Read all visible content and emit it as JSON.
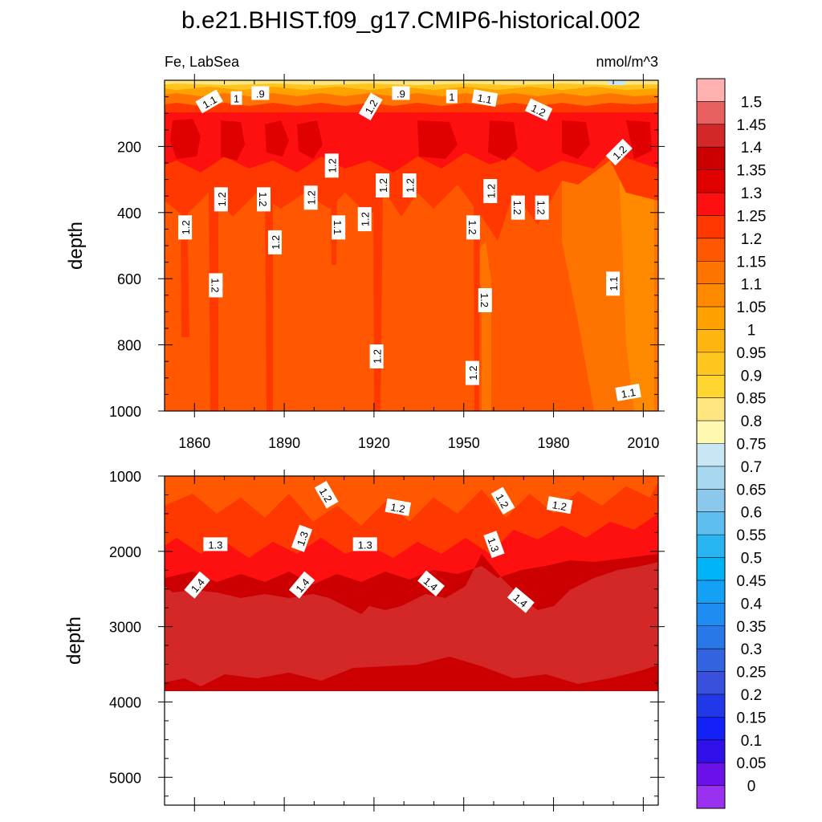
{
  "chart_data": {
    "type": "contour",
    "title": "b.e21.BHIST.f09_g17.CMIP6-historical.002",
    "variable_label": "Fe, LabSea",
    "units_label": "nmol/m^3",
    "colorbar": {
      "levels": [
        "1.5",
        "1.45",
        "1.4",
        "1.35",
        "1.3",
        "1.25",
        "1.2",
        "1.15",
        "1.1",
        "1.05",
        "1",
        "0.95",
        "0.9",
        "0.85",
        "0.8",
        "0.75",
        "0.7",
        "0.65",
        "0.6",
        "0.55",
        "0.5",
        "0.45",
        "0.4",
        "0.35",
        "0.3",
        "0.25",
        "0.2",
        "0.15",
        "0.1",
        "0.05",
        "0"
      ],
      "colors": [
        "#FFB0B0",
        "#E86060",
        "#D42828",
        "#CC0000",
        "#E00000",
        "#FF1010",
        "#FF3800",
        "#FF5800",
        "#FF7400",
        "#FF8A00",
        "#FFA200",
        "#FFB510",
        "#FFC620",
        "#FFD530",
        "#FFE680",
        "#FFF8B0",
        "#C8E6F4",
        "#A8D8F0",
        "#8CC8EC",
        "#5EBEF0",
        "#28B4F0",
        "#00B4F8",
        "#14A0F4",
        "#1E8CF0",
        "#2878E8",
        "#3264E0",
        "#3850DC",
        "#2038E8",
        "#1420F8",
        "#3010E8",
        "#6A10E8",
        "#9A30F0"
      ]
    },
    "panels": [
      {
        "name": "upper",
        "xlabel": "",
        "ylabel": "depth",
        "xlim": [
          1850,
          2015
        ],
        "ylim": [
          1000,
          0
        ],
        "x_ticks": [
          "1860",
          "1890",
          "1920",
          "1950",
          "1980",
          "2010"
        ],
        "y_ticks": [
          "200",
          "400",
          "600",
          "800",
          "1000"
        ],
        "contour_labels": [
          {
            "x": 1865,
            "y": 65,
            "text": "1.1",
            "rot": -30
          },
          {
            "x": 1874,
            "y": 55,
            "text": "1"
          },
          {
            "x": 1882,
            "y": 40,
            "text": ".9"
          },
          {
            "x": 1919,
            "y": 80,
            "text": "1.2",
            "rot": -60
          },
          {
            "x": 1929,
            "y": 40,
            "text": ".9"
          },
          {
            "x": 1946,
            "y": 50,
            "text": "1"
          },
          {
            "x": 1957,
            "y": 55,
            "text": "1.1",
            "rot": 10
          },
          {
            "x": 1975,
            "y": 90,
            "text": "1.2",
            "rot": 25
          },
          {
            "x": 2002,
            "y": 218,
            "text": "1.2",
            "rot": -45
          },
          {
            "x": 1906,
            "y": 258,
            "text": "1.2",
            "rot": -90
          },
          {
            "x": 1923,
            "y": 318,
            "text": "1.2",
            "rot": -90
          },
          {
            "x": 1932,
            "y": 318,
            "text": "1.2",
            "rot": -90
          },
          {
            "x": 1869,
            "y": 360,
            "text": "1.2",
            "rot": -90
          },
          {
            "x": 1883,
            "y": 360,
            "text": "1.2",
            "rot": 90
          },
          {
            "x": 1899,
            "y": 355,
            "text": "1.2",
            "rot": -90
          },
          {
            "x": 1959,
            "y": 335,
            "text": "1.2",
            "rot": -90
          },
          {
            "x": 1968,
            "y": 385,
            "text": "1.2",
            "rot": 90
          },
          {
            "x": 1976,
            "y": 385,
            "text": "1.2",
            "rot": 90
          },
          {
            "x": 1857,
            "y": 445,
            "text": "1.2",
            "rot": -90
          },
          {
            "x": 1908,
            "y": 445,
            "text": "1.1",
            "rot": 90
          },
          {
            "x": 1917,
            "y": 420,
            "text": "1.2",
            "rot": -90
          },
          {
            "x": 1953,
            "y": 445,
            "text": "1.2",
            "rot": 90
          },
          {
            "x": 1887,
            "y": 490,
            "text": "1.2",
            "rot": -90
          },
          {
            "x": 1867,
            "y": 620,
            "text": "1.2",
            "rot": 90
          },
          {
            "x": 1957,
            "y": 665,
            "text": "1.2",
            "rot": 90
          },
          {
            "x": 2000,
            "y": 615,
            "text": "1.1",
            "rot": -90
          },
          {
            "x": 1921,
            "y": 835,
            "text": "1.2",
            "rot": -90
          },
          {
            "x": 1953,
            "y": 885,
            "text": "1.2",
            "rot": -90
          },
          {
            "x": 2005,
            "y": 945,
            "text": "1.1",
            "rot": -10
          }
        ]
      },
      {
        "name": "lower",
        "xlabel": "",
        "ylabel": "depth",
        "xlim": [
          1850,
          2015
        ],
        "ylim": [
          5370,
          1000
        ],
        "data_bottom_depth": 3880,
        "y_ticks": [
          "1000",
          "2000",
          "3000",
          "4000",
          "5000"
        ],
        "contour_labels": [
          {
            "x": 1904,
            "y": 1250,
            "text": "1.2",
            "rot": 60
          },
          {
            "x": 1928,
            "y": 1420,
            "text": "1.2",
            "rot": 10
          },
          {
            "x": 1963,
            "y": 1330,
            "text": "1.2",
            "rot": 60
          },
          {
            "x": 1982,
            "y": 1390,
            "text": "1.2",
            "rot": 10
          },
          {
            "x": 1867,
            "y": 1910,
            "text": "1.3"
          },
          {
            "x": 1896,
            "y": 1830,
            "text": "1.3",
            "rot": -70
          },
          {
            "x": 1917,
            "y": 1910,
            "text": "1.3"
          },
          {
            "x": 1960,
            "y": 1910,
            "text": "1.3",
            "rot": 70
          },
          {
            "x": 1861,
            "y": 2450,
            "text": "1.4",
            "rot": -50
          },
          {
            "x": 1896,
            "y": 2450,
            "text": "1.4",
            "rot": -50
          },
          {
            "x": 1939,
            "y": 2430,
            "text": "1.4",
            "rot": 40
          },
          {
            "x": 1969,
            "y": 2650,
            "text": "1.4",
            "rot": 40
          }
        ]
      }
    ]
  }
}
